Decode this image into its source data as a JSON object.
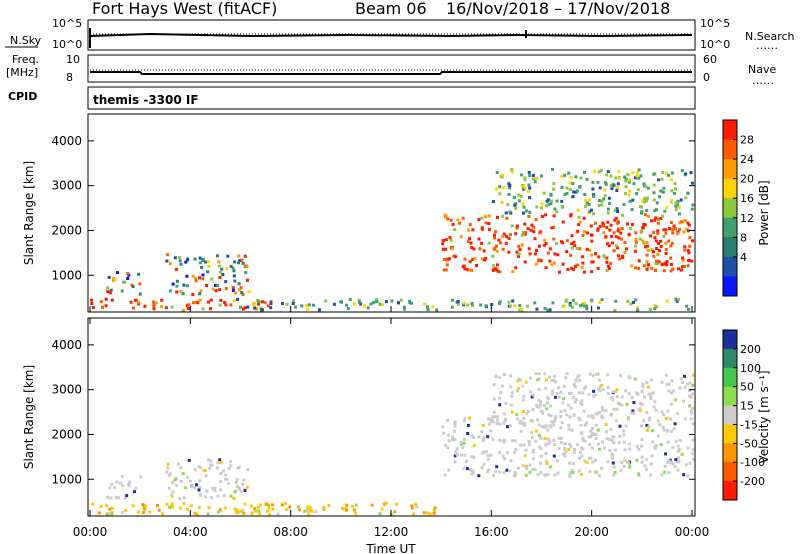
{
  "header": {
    "station": "Fort Hays West (fitACF)",
    "beam": "Beam 06",
    "dates": "16/Nov/2018 – 17/Nov/2018",
    "program": "themis -3300 IF"
  },
  "aux_panels": {
    "nsky_label": "N.Sky",
    "nsearch_label": "N.Search",
    "nsky_ticks": [
      "10^5",
      "10^0"
    ],
    "freq_label": "Freq.",
    "freq_unit": "[MHz]",
    "freq_ticks": [
      "10",
      "8"
    ],
    "nave_label": "Nave",
    "nave_ticks": [
      "60",
      "0"
    ],
    "cpid_label": "CPID",
    "dots": "……"
  },
  "chart_data": [
    {
      "type": "heatmap",
      "title": "",
      "panel": "power",
      "xlabel": "",
      "ylabel": "Slant Range [km]",
      "yticks": [
        1000,
        2000,
        3000,
        4000
      ],
      "ylim": [
        180,
        4600
      ],
      "xlim": [
        0,
        24
      ],
      "xticks": [
        "00:00",
        "04:00",
        "08:00",
        "12:00",
        "16:00",
        "20:00",
        "00:00"
      ],
      "colorbar_label": "Power [dB]",
      "colorbar_ticks": [
        "28",
        "24",
        "20",
        "16",
        "12",
        "8",
        "4"
      ],
      "colorbar_colors": [
        "#ff1a00",
        "#ff5a00",
        "#ff9a00",
        "#ffd400",
        "#8cc83c",
        "#40a070",
        "#2a7e6e",
        "#1e4ea8",
        "#0a14ff"
      ],
      "echo_regions": [
        {
          "start_h": 0.0,
          "end_h": 7.5,
          "min_km": 250,
          "max_km": 500,
          "level": "high"
        },
        {
          "start_h": 0.6,
          "end_h": 2.0,
          "min_km": 600,
          "max_km": 1100,
          "level": "mixed"
        },
        {
          "start_h": 3.0,
          "end_h": 6.3,
          "min_km": 600,
          "max_km": 1500,
          "level": "mixed"
        },
        {
          "start_h": 5.5,
          "end_h": 13.8,
          "min_km": 250,
          "max_km": 500,
          "level": "low"
        },
        {
          "start_h": 14.0,
          "end_h": 24.0,
          "min_km": 1100,
          "max_km": 2400,
          "level": "high"
        },
        {
          "start_h": 16.0,
          "end_h": 24.0,
          "min_km": 2400,
          "max_km": 3400,
          "level": "low"
        },
        {
          "start_h": 14.0,
          "end_h": 24.0,
          "min_km": 250,
          "max_km": 500,
          "level": "low"
        }
      ]
    },
    {
      "type": "heatmap",
      "title": "",
      "panel": "velocity",
      "xlabel": "Time UT",
      "ylabel": "Slant Range [km]",
      "yticks": [
        1000,
        2000,
        3000,
        4000
      ],
      "ylim": [
        180,
        4600
      ],
      "xlim": [
        0,
        24
      ],
      "xticks": [
        "00:00",
        "04:00",
        "08:00",
        "12:00",
        "16:00",
        "20:00",
        "00:00"
      ],
      "colorbar_label": "Velocity [m s⁻¹]",
      "colorbar_ticks": [
        "200",
        "100",
        "50",
        "15",
        "-15",
        "-50",
        "-100",
        "-200"
      ],
      "colorbar_colors": [
        "#1c2ea0",
        "#2e8a6a",
        "#46c64c",
        "#8cdc50",
        "#cccccc",
        "#ffc800",
        "#ff9600",
        "#ff5a00",
        "#ff1a00"
      ],
      "echo_regions": [
        {
          "start_h": 0.0,
          "end_h": 7.5,
          "min_km": 250,
          "max_km": 500,
          "level": "negative"
        },
        {
          "start_h": 0.6,
          "end_h": 2.0,
          "min_km": 600,
          "max_km": 1100,
          "level": "ground"
        },
        {
          "start_h": 3.0,
          "end_h": 6.3,
          "min_km": 600,
          "max_km": 1500,
          "level": "ground"
        },
        {
          "start_h": 5.5,
          "end_h": 13.8,
          "min_km": 250,
          "max_km": 500,
          "level": "negative"
        },
        {
          "start_h": 14.0,
          "end_h": 24.0,
          "min_km": 1100,
          "max_km": 2400,
          "level": "ground"
        },
        {
          "start_h": 16.0,
          "end_h": 24.0,
          "min_km": 2400,
          "max_km": 3400,
          "level": "ground"
        }
      ]
    }
  ]
}
